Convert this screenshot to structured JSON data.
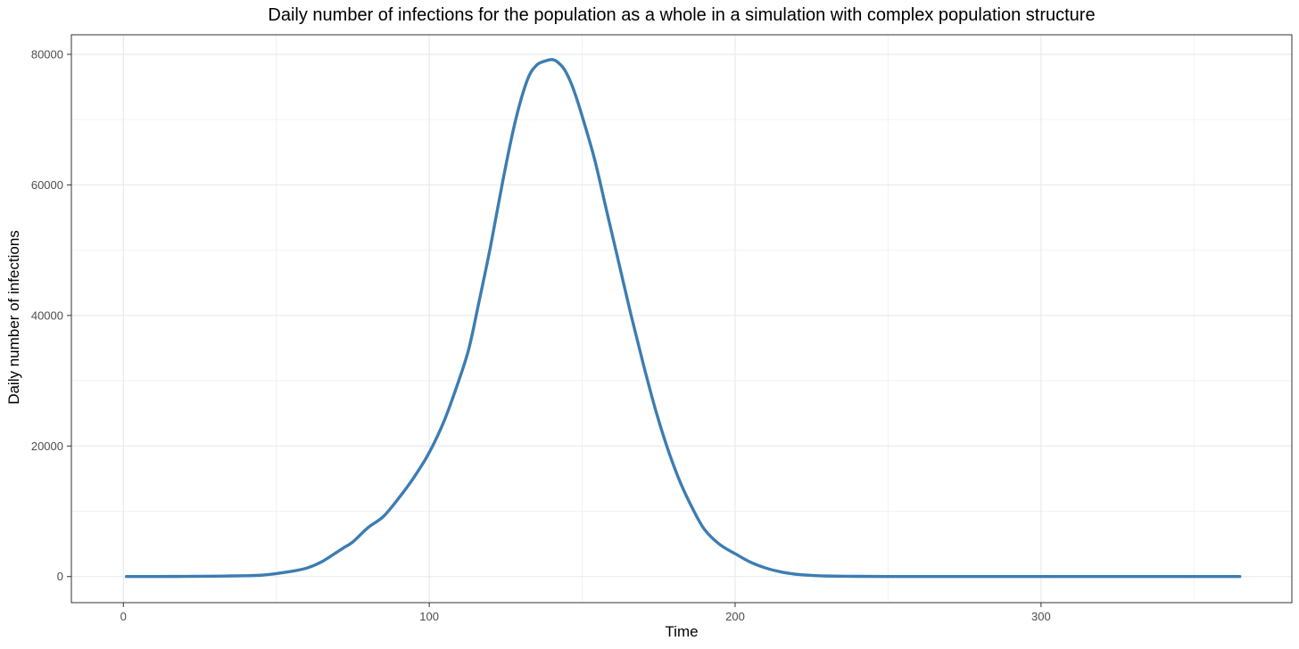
{
  "chart_data": {
    "type": "line",
    "title": "Daily number of infections for the population as a whole in a simulation with complex population structure",
    "xlabel": "Time",
    "ylabel": "Daily number of infections",
    "xlim": [
      -17,
      382
    ],
    "ylim": [
      -4000,
      83000
    ],
    "x_ticks": [
      0,
      100,
      200,
      300
    ],
    "x_tick_labels": [
      "0",
      "100",
      "200",
      "300"
    ],
    "y_ticks": [
      0,
      20000,
      40000,
      60000,
      80000
    ],
    "y_tick_labels": [
      "0",
      "20000",
      "40000",
      "60000",
      "80000"
    ],
    "grid": true,
    "legend": "none",
    "series": [
      {
        "color": "#3c7db2",
        "x": [
          1,
          10,
          20,
          30,
          40,
          45,
          50,
          55,
          60,
          65,
          70,
          72,
          75,
          80,
          85,
          90,
          95,
          100,
          105,
          110,
          113,
          116,
          120,
          124,
          128,
          132,
          135,
          138,
          140,
          141,
          142,
          144,
          146,
          148,
          150,
          154,
          158,
          162,
          166,
          170,
          174,
          178,
          182,
          186,
          190,
          195,
          200,
          205,
          210,
          215,
          220,
          225,
          230,
          240,
          250,
          260,
          280,
          300,
          330,
          365
        ],
        "y": [
          0,
          5,
          20,
          60,
          120,
          200,
          450,
          800,
          1300,
          2300,
          3800,
          4400,
          5300,
          7500,
          9200,
          12000,
          15200,
          19000,
          24000,
          30500,
          35000,
          41500,
          50500,
          60500,
          69500,
          76000,
          78300,
          79000,
          79200,
          79100,
          78800,
          77800,
          76000,
          73500,
          70500,
          64000,
          56000,
          48000,
          40000,
          32500,
          25500,
          19500,
          14500,
          10500,
          7200,
          4900,
          3500,
          2200,
          1300,
          700,
          350,
          180,
          80,
          30,
          10,
          5,
          2,
          0,
          0,
          0
        ]
      }
    ]
  }
}
